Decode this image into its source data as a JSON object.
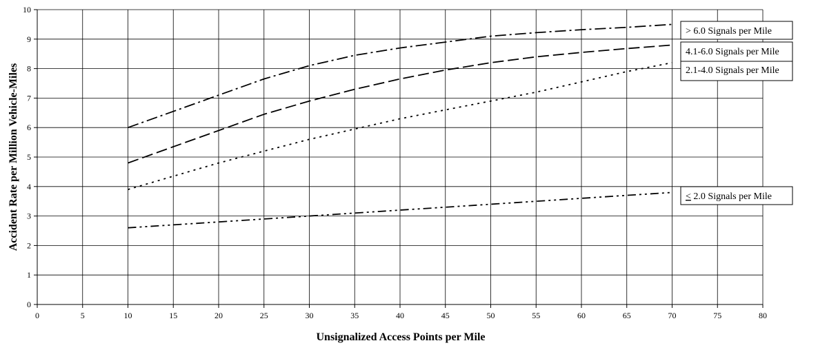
{
  "chart_data": {
    "type": "line",
    "title": "",
    "xlabel": "Unsignalized Access Points per Mile",
    "ylabel": "Accident Rate per Million Vehicle-Miles",
    "xlim": [
      0,
      80
    ],
    "ylim": [
      0,
      10
    ],
    "xticks": [
      0,
      5,
      10,
      15,
      20,
      25,
      30,
      35,
      40,
      45,
      50,
      55,
      60,
      65,
      70,
      75,
      80
    ],
    "yticks": [
      0,
      1,
      2,
      3,
      4,
      5,
      6,
      7,
      8,
      9,
      10
    ],
    "grid": true,
    "legend_placement": "labels at right end of each line",
    "series": [
      {
        "name": "> 6.0 Signals per Mile",
        "dash": "dash-dot",
        "x": [
          10,
          15,
          20,
          25,
          30,
          35,
          40,
          45,
          50,
          55,
          60,
          65,
          70
        ],
        "y": [
          6.0,
          6.55,
          7.1,
          7.65,
          8.1,
          8.45,
          8.7,
          8.9,
          9.1,
          9.22,
          9.32,
          9.4,
          9.5
        ]
      },
      {
        "name": "4.1-6.0 Signals per Mile",
        "dash": "long-dash",
        "x": [
          10,
          15,
          20,
          25,
          30,
          35,
          40,
          45,
          50,
          55,
          60,
          65,
          70
        ],
        "y": [
          4.8,
          5.35,
          5.9,
          6.45,
          6.9,
          7.3,
          7.65,
          7.95,
          8.2,
          8.4,
          8.55,
          8.68,
          8.8
        ]
      },
      {
        "name": "2.1-4.0 Signals per Mile",
        "dash": "dotted",
        "x": [
          10,
          15,
          20,
          25,
          30,
          35,
          40,
          45,
          50,
          55,
          60,
          65,
          70
        ],
        "y": [
          3.9,
          4.35,
          4.8,
          5.2,
          5.6,
          5.95,
          6.3,
          6.6,
          6.9,
          7.2,
          7.55,
          7.9,
          8.2
        ]
      },
      {
        "name": "< 2.0 Signals per Mile",
        "dash": "dash-dot-dot",
        "x": [
          10,
          15,
          20,
          25,
          30,
          35,
          40,
          45,
          50,
          55,
          60,
          65,
          70
        ],
        "y": [
          2.6,
          2.7,
          2.8,
          2.9,
          3.0,
          3.1,
          3.2,
          3.3,
          3.4,
          3.5,
          3.6,
          3.7,
          3.8
        ]
      }
    ]
  },
  "legend": {
    "s0": "> 6.0 Signals per Mile",
    "s1": "4.1-6.0 Signals per Mile",
    "s2": "2.1-4.0 Signals per Mile",
    "s3_symbol": "<",
    "s3_rest": " 2.0 Signals per Mile"
  }
}
